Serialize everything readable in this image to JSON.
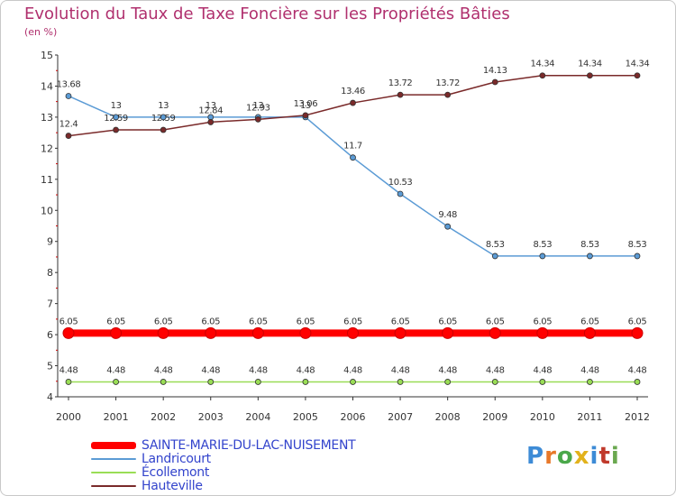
{
  "title": "Evolution du Taux de Taxe Foncière sur les Propriétés Bâties",
  "subtitle": "(en %)",
  "logo": {
    "text": "Proxiti",
    "colors": [
      "#3d8bd6",
      "#e8792a",
      "#4aa84a",
      "#e2b21c",
      "#3d8bd6",
      "#c0392b",
      "#6aa84f"
    ]
  },
  "chart_data": {
    "type": "line",
    "title": "Evolution du Taux de Taxe Foncière sur les Propriétés Bâties",
    "ylabel": "(en %)",
    "xlabel": "",
    "ylim": [
      4,
      15
    ],
    "yticks": [
      "4",
      "5",
      "6",
      "7",
      "8",
      "9",
      "10",
      "11",
      "12",
      "13",
      "14",
      "15"
    ],
    "categories": [
      "2000",
      "2001",
      "2002",
      "2003",
      "2004",
      "2005",
      "2006",
      "2007",
      "2008",
      "2009",
      "2010",
      "2011",
      "2012"
    ],
    "grid": false,
    "legend": "bottom-left",
    "series": [
      {
        "name": "SAINTE-MARIE-DU-LAC-NUISEMENT",
        "color": "#ff0000",
        "values": [
          6.05,
          6.05,
          6.05,
          6.05,
          6.05,
          6.05,
          6.05,
          6.05,
          6.05,
          6.05,
          6.05,
          6.05,
          6.05
        ],
        "labels": [
          "6.05",
          "6.05",
          "6.05",
          "6.05",
          "6.05",
          "6.05",
          "6.05",
          "6.05",
          "6.05",
          "6.05",
          "6.05",
          "6.05",
          "6.05"
        ]
      },
      {
        "name": "Landricourt",
        "color": "#5b9bd5",
        "values": [
          13.68,
          13,
          13,
          13,
          13,
          13,
          11.7,
          10.53,
          9.48,
          8.53,
          8.53,
          8.53,
          8.53
        ],
        "labels": [
          "13.68",
          "13",
          "13",
          "13",
          "13",
          "13",
          "11.7",
          "10.53",
          "9.48",
          "8.53",
          "8.53",
          "8.53",
          "8.53"
        ]
      },
      {
        "name": "Écollemont",
        "color": "#99dd55",
        "values": [
          4.48,
          4.48,
          4.48,
          4.48,
          4.48,
          4.48,
          4.48,
          4.48,
          4.48,
          4.48,
          4.48,
          4.48,
          4.48
        ],
        "labels": [
          "4.48",
          "4.48",
          "4.48",
          "4.48",
          "4.48",
          "4.48",
          "4.48",
          "4.48",
          "4.48",
          "4.48",
          "4.48",
          "4.48",
          "4.48"
        ]
      },
      {
        "name": "Hauteville",
        "color": "#7a2a2a",
        "values": [
          12.4,
          12.59,
          12.59,
          12.84,
          12.93,
          13.06,
          13.46,
          13.72,
          13.72,
          14.13,
          14.34,
          14.34,
          14.34
        ],
        "labels": [
          "12.4",
          "12.59",
          "12.59",
          "12.84",
          "12.93",
          "13.06",
          "13.46",
          "13.72",
          "13.72",
          "14.13",
          "14.34",
          "14.34",
          "14.34"
        ]
      }
    ]
  }
}
